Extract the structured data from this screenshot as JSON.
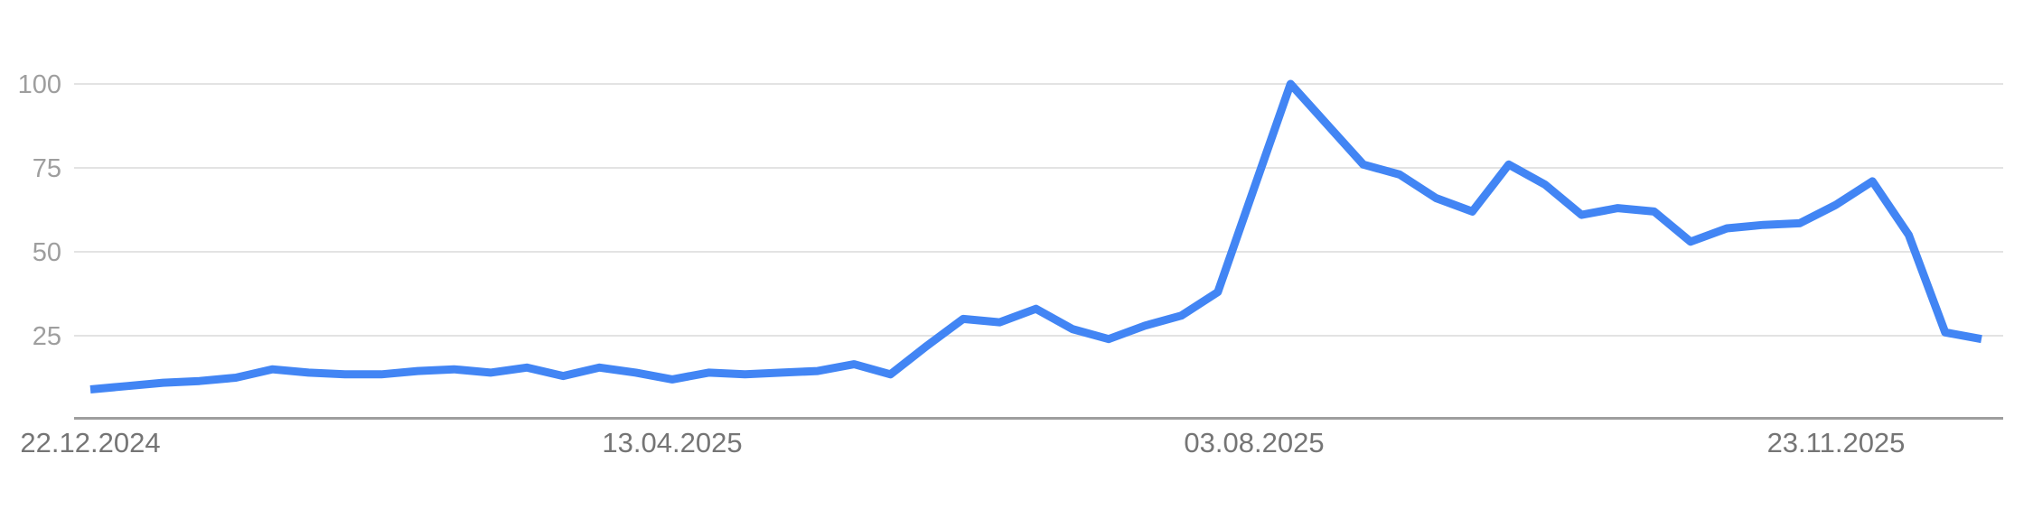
{
  "chart_data": {
    "type": "line",
    "title": "",
    "x_axis": {
      "labels": [
        "22.12.2024",
        "13.04.2025",
        "03.08.2025",
        "23.11.2025"
      ],
      "label_week_indices": [
        0,
        16,
        32,
        48
      ]
    },
    "y_axis": {
      "tick_labels": [
        "100",
        "75",
        "50",
        "25"
      ],
      "tick_values": [
        100,
        75,
        50,
        25
      ],
      "ylim": [
        0,
        100
      ],
      "grid": true
    },
    "series": [
      {
        "name": "interest-over-time",
        "color": "#4285f4",
        "values": [
          9,
          10,
          11,
          11.5,
          12.5,
          15,
          14,
          13.5,
          13.5,
          14.5,
          15,
          14,
          15.5,
          13,
          15.5,
          14,
          12,
          14,
          13.5,
          14,
          14.5,
          16.5,
          13.5,
          22,
          30,
          29,
          33,
          27,
          24,
          28,
          31,
          38,
          69,
          100,
          88,
          76,
          73,
          66,
          62,
          76,
          70,
          61,
          63,
          62,
          53,
          57,
          58,
          58.5,
          64,
          71,
          55,
          26,
          24
        ]
      }
    ],
    "colors": {
      "line": "#4285f4",
      "gridline": "#e3e3e3",
      "axis_line": "#9e9e9e",
      "y_tick_label": "#9e9e9e",
      "x_tick_label": "#757575"
    }
  }
}
